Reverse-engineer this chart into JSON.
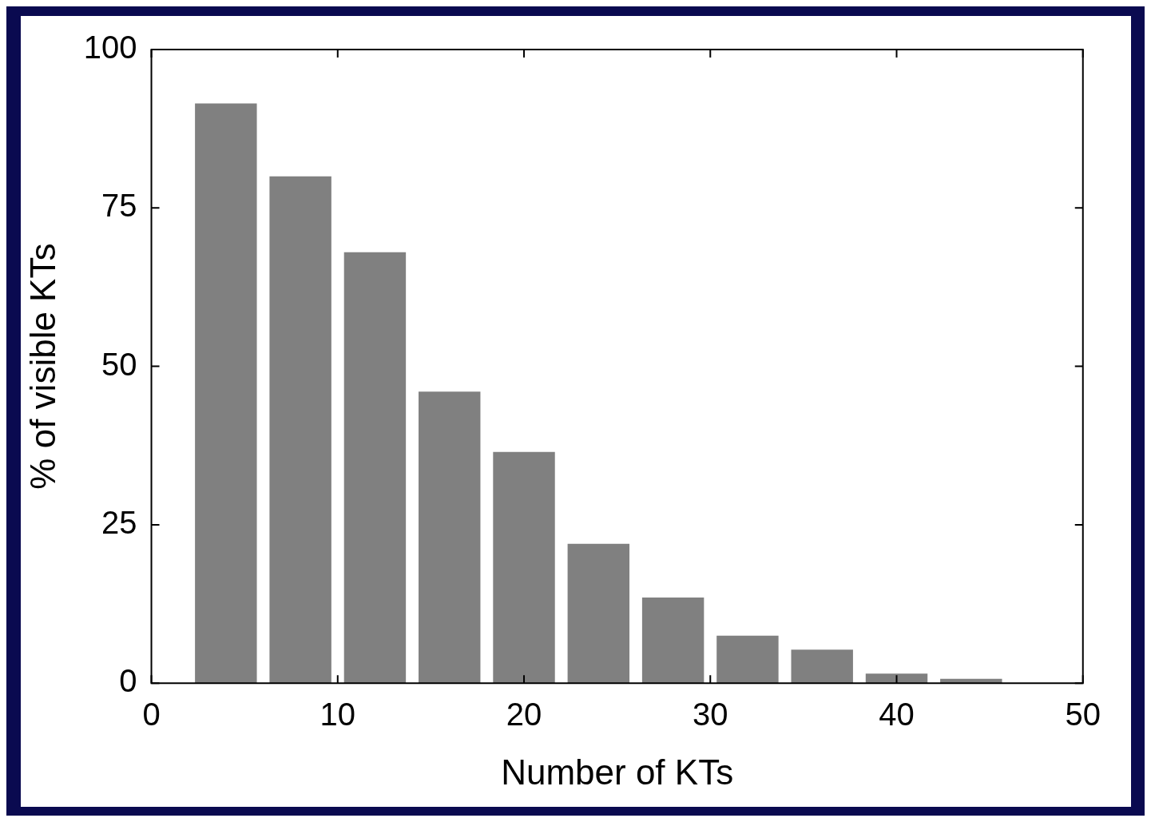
{
  "chart_data": {
    "type": "histogram",
    "xlabel": "Number of KTs",
    "ylabel": "% of visible KTs",
    "bins": [
      2,
      6,
      10,
      14,
      18,
      22,
      26,
      30,
      34,
      38,
      42,
      46,
      50
    ],
    "values": [
      91.5,
      80,
      68,
      46,
      36.5,
      22,
      13.5,
      7.5,
      5.3,
      1.5,
      0.7,
      null
    ],
    "color": "#808080",
    "xlim": [
      0,
      50
    ],
    "xticks": [
      0,
      10,
      20,
      30,
      40,
      50
    ],
    "ylim": [
      0,
      100
    ],
    "yticks": [
      0,
      25,
      50,
      75,
      100
    ],
    "grid": false
  }
}
